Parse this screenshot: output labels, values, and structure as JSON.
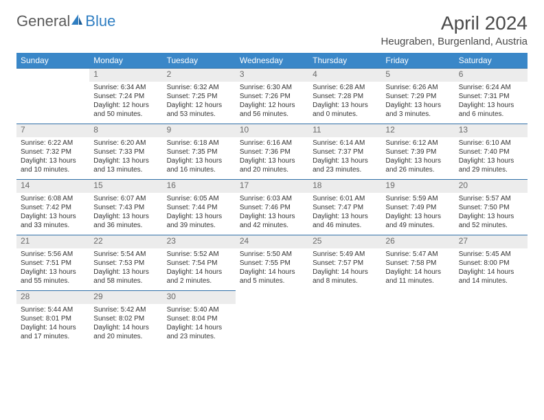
{
  "brand": {
    "part1": "General",
    "part2": "Blue"
  },
  "title": "April 2024",
  "location": "Heugraben, Burgenland, Austria",
  "colors": {
    "header_bg": "#3a87c8",
    "header_text": "#ffffff",
    "daynum_bg": "#ececec",
    "row_border": "#2f6fa8",
    "text": "#333333",
    "brand_gray": "#5a5a5a",
    "brand_blue": "#2f7ec2"
  },
  "weekdays": [
    "Sunday",
    "Monday",
    "Tuesday",
    "Wednesday",
    "Thursday",
    "Friday",
    "Saturday"
  ],
  "weeks": [
    [
      {
        "n": "",
        "sr": "",
        "ss": "",
        "dl": ""
      },
      {
        "n": "1",
        "sr": "Sunrise: 6:34 AM",
        "ss": "Sunset: 7:24 PM",
        "dl": "Daylight: 12 hours and 50 minutes."
      },
      {
        "n": "2",
        "sr": "Sunrise: 6:32 AM",
        "ss": "Sunset: 7:25 PM",
        "dl": "Daylight: 12 hours and 53 minutes."
      },
      {
        "n": "3",
        "sr": "Sunrise: 6:30 AM",
        "ss": "Sunset: 7:26 PM",
        "dl": "Daylight: 12 hours and 56 minutes."
      },
      {
        "n": "4",
        "sr": "Sunrise: 6:28 AM",
        "ss": "Sunset: 7:28 PM",
        "dl": "Daylight: 13 hours and 0 minutes."
      },
      {
        "n": "5",
        "sr": "Sunrise: 6:26 AM",
        "ss": "Sunset: 7:29 PM",
        "dl": "Daylight: 13 hours and 3 minutes."
      },
      {
        "n": "6",
        "sr": "Sunrise: 6:24 AM",
        "ss": "Sunset: 7:31 PM",
        "dl": "Daylight: 13 hours and 6 minutes."
      }
    ],
    [
      {
        "n": "7",
        "sr": "Sunrise: 6:22 AM",
        "ss": "Sunset: 7:32 PM",
        "dl": "Daylight: 13 hours and 10 minutes."
      },
      {
        "n": "8",
        "sr": "Sunrise: 6:20 AM",
        "ss": "Sunset: 7:33 PM",
        "dl": "Daylight: 13 hours and 13 minutes."
      },
      {
        "n": "9",
        "sr": "Sunrise: 6:18 AM",
        "ss": "Sunset: 7:35 PM",
        "dl": "Daylight: 13 hours and 16 minutes."
      },
      {
        "n": "10",
        "sr": "Sunrise: 6:16 AM",
        "ss": "Sunset: 7:36 PM",
        "dl": "Daylight: 13 hours and 20 minutes."
      },
      {
        "n": "11",
        "sr": "Sunrise: 6:14 AM",
        "ss": "Sunset: 7:37 PM",
        "dl": "Daylight: 13 hours and 23 minutes."
      },
      {
        "n": "12",
        "sr": "Sunrise: 6:12 AM",
        "ss": "Sunset: 7:39 PM",
        "dl": "Daylight: 13 hours and 26 minutes."
      },
      {
        "n": "13",
        "sr": "Sunrise: 6:10 AM",
        "ss": "Sunset: 7:40 PM",
        "dl": "Daylight: 13 hours and 29 minutes."
      }
    ],
    [
      {
        "n": "14",
        "sr": "Sunrise: 6:08 AM",
        "ss": "Sunset: 7:42 PM",
        "dl": "Daylight: 13 hours and 33 minutes."
      },
      {
        "n": "15",
        "sr": "Sunrise: 6:07 AM",
        "ss": "Sunset: 7:43 PM",
        "dl": "Daylight: 13 hours and 36 minutes."
      },
      {
        "n": "16",
        "sr": "Sunrise: 6:05 AM",
        "ss": "Sunset: 7:44 PM",
        "dl": "Daylight: 13 hours and 39 minutes."
      },
      {
        "n": "17",
        "sr": "Sunrise: 6:03 AM",
        "ss": "Sunset: 7:46 PM",
        "dl": "Daylight: 13 hours and 42 minutes."
      },
      {
        "n": "18",
        "sr": "Sunrise: 6:01 AM",
        "ss": "Sunset: 7:47 PM",
        "dl": "Daylight: 13 hours and 46 minutes."
      },
      {
        "n": "19",
        "sr": "Sunrise: 5:59 AM",
        "ss": "Sunset: 7:49 PM",
        "dl": "Daylight: 13 hours and 49 minutes."
      },
      {
        "n": "20",
        "sr": "Sunrise: 5:57 AM",
        "ss": "Sunset: 7:50 PM",
        "dl": "Daylight: 13 hours and 52 minutes."
      }
    ],
    [
      {
        "n": "21",
        "sr": "Sunrise: 5:56 AM",
        "ss": "Sunset: 7:51 PM",
        "dl": "Daylight: 13 hours and 55 minutes."
      },
      {
        "n": "22",
        "sr": "Sunrise: 5:54 AM",
        "ss": "Sunset: 7:53 PM",
        "dl": "Daylight: 13 hours and 58 minutes."
      },
      {
        "n": "23",
        "sr": "Sunrise: 5:52 AM",
        "ss": "Sunset: 7:54 PM",
        "dl": "Daylight: 14 hours and 2 minutes."
      },
      {
        "n": "24",
        "sr": "Sunrise: 5:50 AM",
        "ss": "Sunset: 7:55 PM",
        "dl": "Daylight: 14 hours and 5 minutes."
      },
      {
        "n": "25",
        "sr": "Sunrise: 5:49 AM",
        "ss": "Sunset: 7:57 PM",
        "dl": "Daylight: 14 hours and 8 minutes."
      },
      {
        "n": "26",
        "sr": "Sunrise: 5:47 AM",
        "ss": "Sunset: 7:58 PM",
        "dl": "Daylight: 14 hours and 11 minutes."
      },
      {
        "n": "27",
        "sr": "Sunrise: 5:45 AM",
        "ss": "Sunset: 8:00 PM",
        "dl": "Daylight: 14 hours and 14 minutes."
      }
    ],
    [
      {
        "n": "28",
        "sr": "Sunrise: 5:44 AM",
        "ss": "Sunset: 8:01 PM",
        "dl": "Daylight: 14 hours and 17 minutes."
      },
      {
        "n": "29",
        "sr": "Sunrise: 5:42 AM",
        "ss": "Sunset: 8:02 PM",
        "dl": "Daylight: 14 hours and 20 minutes."
      },
      {
        "n": "30",
        "sr": "Sunrise: 5:40 AM",
        "ss": "Sunset: 8:04 PM",
        "dl": "Daylight: 14 hours and 23 minutes."
      },
      {
        "n": "",
        "sr": "",
        "ss": "",
        "dl": ""
      },
      {
        "n": "",
        "sr": "",
        "ss": "",
        "dl": ""
      },
      {
        "n": "",
        "sr": "",
        "ss": "",
        "dl": ""
      },
      {
        "n": "",
        "sr": "",
        "ss": "",
        "dl": ""
      }
    ]
  ]
}
